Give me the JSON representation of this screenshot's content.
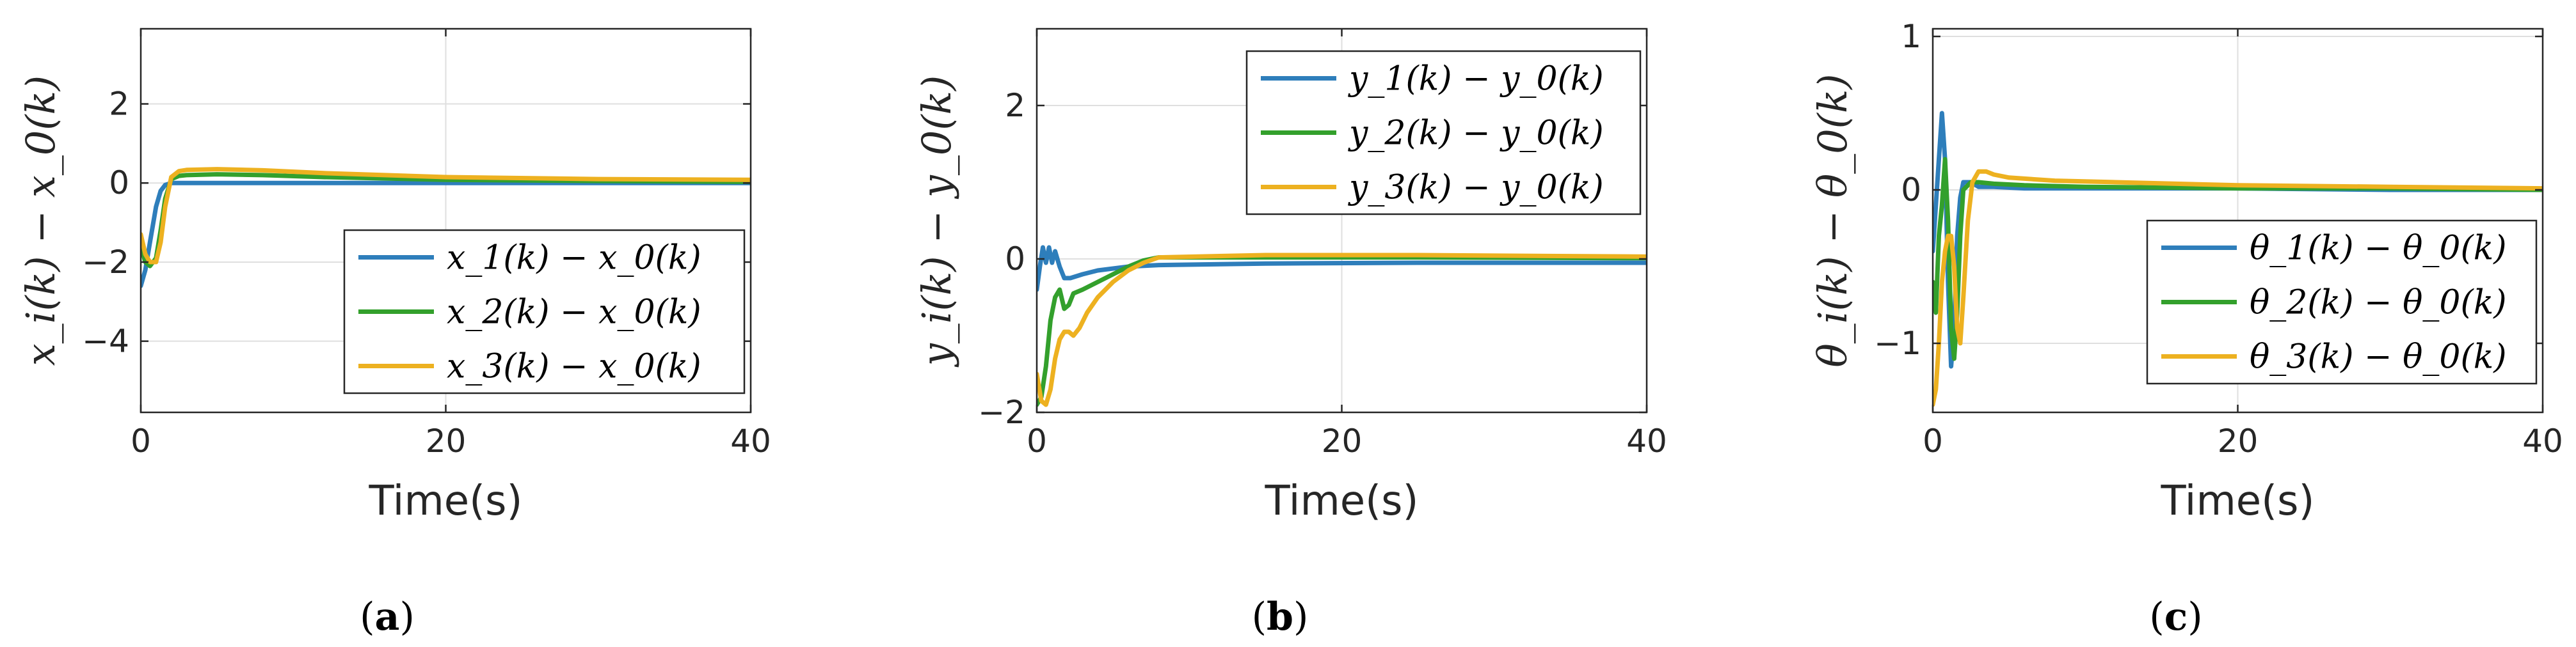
{
  "chart_data": [
    {
      "type": "line",
      "panel_label": "a",
      "xlabel": "Time(s)",
      "ylabel": "x_i(k) − x_0(k)",
      "xlim": [
        0,
        40
      ],
      "ylim": [
        -5.8,
        3.9
      ],
      "xticks": [
        0,
        20,
        40
      ],
      "yticks": [
        2,
        0,
        -2,
        -4
      ],
      "grid": true,
      "legend_position": "bottom-right",
      "series": [
        {
          "name": "x_1(k) − x_0(k)",
          "color": "#2E7EBB",
          "x": [
            0,
            0.3,
            0.6,
            1.0,
            1.3,
            1.6,
            2.0,
            3.0,
            5.0,
            10.0,
            20.0,
            30.0,
            40.0
          ],
          "y": [
            -2.6,
            -2.2,
            -1.5,
            -0.6,
            -0.2,
            -0.05,
            0.0,
            0.0,
            0.0,
            0.0,
            0.0,
            0.0,
            0.0
          ]
        },
        {
          "name": "x_2(k) − x_0(k)",
          "color": "#33A02C",
          "x": [
            0,
            0.3,
            0.6,
            1.0,
            1.3,
            1.6,
            2.0,
            2.5,
            3.0,
            5.0,
            8.0,
            12.0,
            20.0,
            30.0,
            40.0
          ],
          "y": [
            -1.6,
            -2.0,
            -2.1,
            -1.9,
            -1.2,
            -0.4,
            0.1,
            0.18,
            0.2,
            0.22,
            0.2,
            0.15,
            0.08,
            0.05,
            0.03
          ]
        },
        {
          "name": "x_3(k) − x_0(k)",
          "color": "#EDB120",
          "x": [
            0,
            0.3,
            0.6,
            1.0,
            1.3,
            1.6,
            2.0,
            2.5,
            3.0,
            5.0,
            8.0,
            12.0,
            20.0,
            30.0,
            40.0
          ],
          "y": [
            -1.3,
            -1.8,
            -2.0,
            -2.0,
            -1.5,
            -0.6,
            0.15,
            0.3,
            0.33,
            0.35,
            0.32,
            0.25,
            0.15,
            0.1,
            0.08
          ]
        }
      ]
    },
    {
      "type": "line",
      "panel_label": "b",
      "xlabel": "Time(s)",
      "ylabel": "y_i(k) − y_0(k)",
      "xlim": [
        0,
        40
      ],
      "ylim": [
        -2,
        3
      ],
      "xticks": [
        0,
        20,
        40
      ],
      "yticks": [
        2,
        0,
        -2
      ],
      "grid": true,
      "legend_position": "top-right",
      "series": [
        {
          "name": "y_1(k) − y_0(k)",
          "color": "#2E7EBB",
          "x": [
            0,
            0.2,
            0.4,
            0.6,
            0.8,
            1.0,
            1.2,
            1.5,
            1.8,
            2.2,
            3.0,
            4.0,
            6.0,
            8.0,
            15.0,
            25.0,
            40.0
          ],
          "y": [
            -0.4,
            -0.1,
            0.15,
            -0.05,
            0.15,
            -0.05,
            0.1,
            -0.1,
            -0.25,
            -0.25,
            -0.2,
            -0.15,
            -0.1,
            -0.08,
            -0.06,
            -0.05,
            -0.05
          ]
        },
        {
          "name": "y_2(k) − y_0(k)",
          "color": "#33A02C",
          "x": [
            0,
            0.3,
            0.6,
            0.9,
            1.2,
            1.5,
            1.8,
            2.1,
            2.4,
            3.0,
            4.0,
            5.0,
            6.0,
            7.0,
            8.0,
            15.0,
            25.0,
            40.0
          ],
          "y": [
            -1.9,
            -1.8,
            -1.4,
            -0.8,
            -0.5,
            -0.4,
            -0.65,
            -0.6,
            -0.45,
            -0.4,
            -0.3,
            -0.2,
            -0.1,
            -0.02,
            0.02,
            0.02,
            0.02,
            0.01
          ]
        },
        {
          "name": "y_3(k) − y_0(k)",
          "color": "#EDB120",
          "x": [
            0,
            0.3,
            0.6,
            0.9,
            1.2,
            1.5,
            1.8,
            2.1,
            2.4,
            2.8,
            3.3,
            4.0,
            5.0,
            6.0,
            7.0,
            8.0,
            15.0,
            25.0,
            40.0
          ],
          "y": [
            -1.5,
            -1.85,
            -1.9,
            -1.7,
            -1.3,
            -1.05,
            -0.95,
            -0.95,
            -1.0,
            -0.9,
            -0.7,
            -0.5,
            -0.3,
            -0.15,
            -0.05,
            0.02,
            0.05,
            0.05,
            0.03
          ]
        }
      ]
    },
    {
      "type": "line",
      "panel_label": "c",
      "xlabel": "Time(s)",
      "ylabel": "θ_i(k) − θ_0(k)",
      "xlim": [
        0,
        40
      ],
      "ylim": [
        -1.45,
        1.05
      ],
      "xticks": [
        0,
        20,
        40
      ],
      "yticks": [
        1,
        0,
        -1
      ],
      "grid": true,
      "legend_position": "bottom-right",
      "series": [
        {
          "name": "θ_1(k) − θ_0(k)",
          "color": "#2E7EBB",
          "x": [
            0,
            0.2,
            0.4,
            0.6,
            0.8,
            1.0,
            1.2,
            1.4,
            1.6,
            1.8,
            2.0,
            2.5,
            3.0,
            4.0,
            6.0,
            10.0,
            20.0,
            30.0,
            40.0
          ],
          "y": [
            -0.4,
            -0.1,
            0.2,
            0.5,
            0.2,
            -0.6,
            -1.15,
            -0.9,
            -0.3,
            -0.05,
            0.05,
            0.05,
            0.02,
            0.02,
            0.01,
            0.01,
            0.01,
            0.0,
            0.0
          ]
        },
        {
          "name": "θ_2(k) − θ_0(k)",
          "color": "#33A02C",
          "x": [
            0,
            0.2,
            0.4,
            0.6,
            0.8,
            1.0,
            1.2,
            1.4,
            1.6,
            1.8,
            2.0,
            2.5,
            3.0,
            4.0,
            6.0,
            10.0,
            20.0,
            30.0,
            40.0
          ],
          "y": [
            -0.6,
            -0.8,
            -0.3,
            -0.1,
            0.2,
            -0.2,
            -0.9,
            -1.1,
            -0.8,
            -0.3,
            0.0,
            0.05,
            0.05,
            0.04,
            0.03,
            0.02,
            0.01,
            0.01,
            0.0
          ]
        },
        {
          "name": "θ_3(k) − θ_0(k)",
          "color": "#EDB120",
          "x": [
            0,
            0.2,
            0.4,
            0.6,
            0.8,
            1.0,
            1.2,
            1.4,
            1.6,
            1.8,
            2.0,
            2.3,
            2.6,
            3.0,
            3.5,
            4.0,
            5.0,
            8.0,
            12.0,
            20.0,
            30.0,
            40.0
          ],
          "y": [
            -1.4,
            -1.3,
            -1.0,
            -0.6,
            -0.4,
            -0.3,
            -0.3,
            -0.5,
            -0.9,
            -1.0,
            -0.7,
            -0.2,
            0.05,
            0.12,
            0.12,
            0.1,
            0.08,
            0.06,
            0.05,
            0.03,
            0.02,
            0.01
          ]
        }
      ]
    }
  ]
}
